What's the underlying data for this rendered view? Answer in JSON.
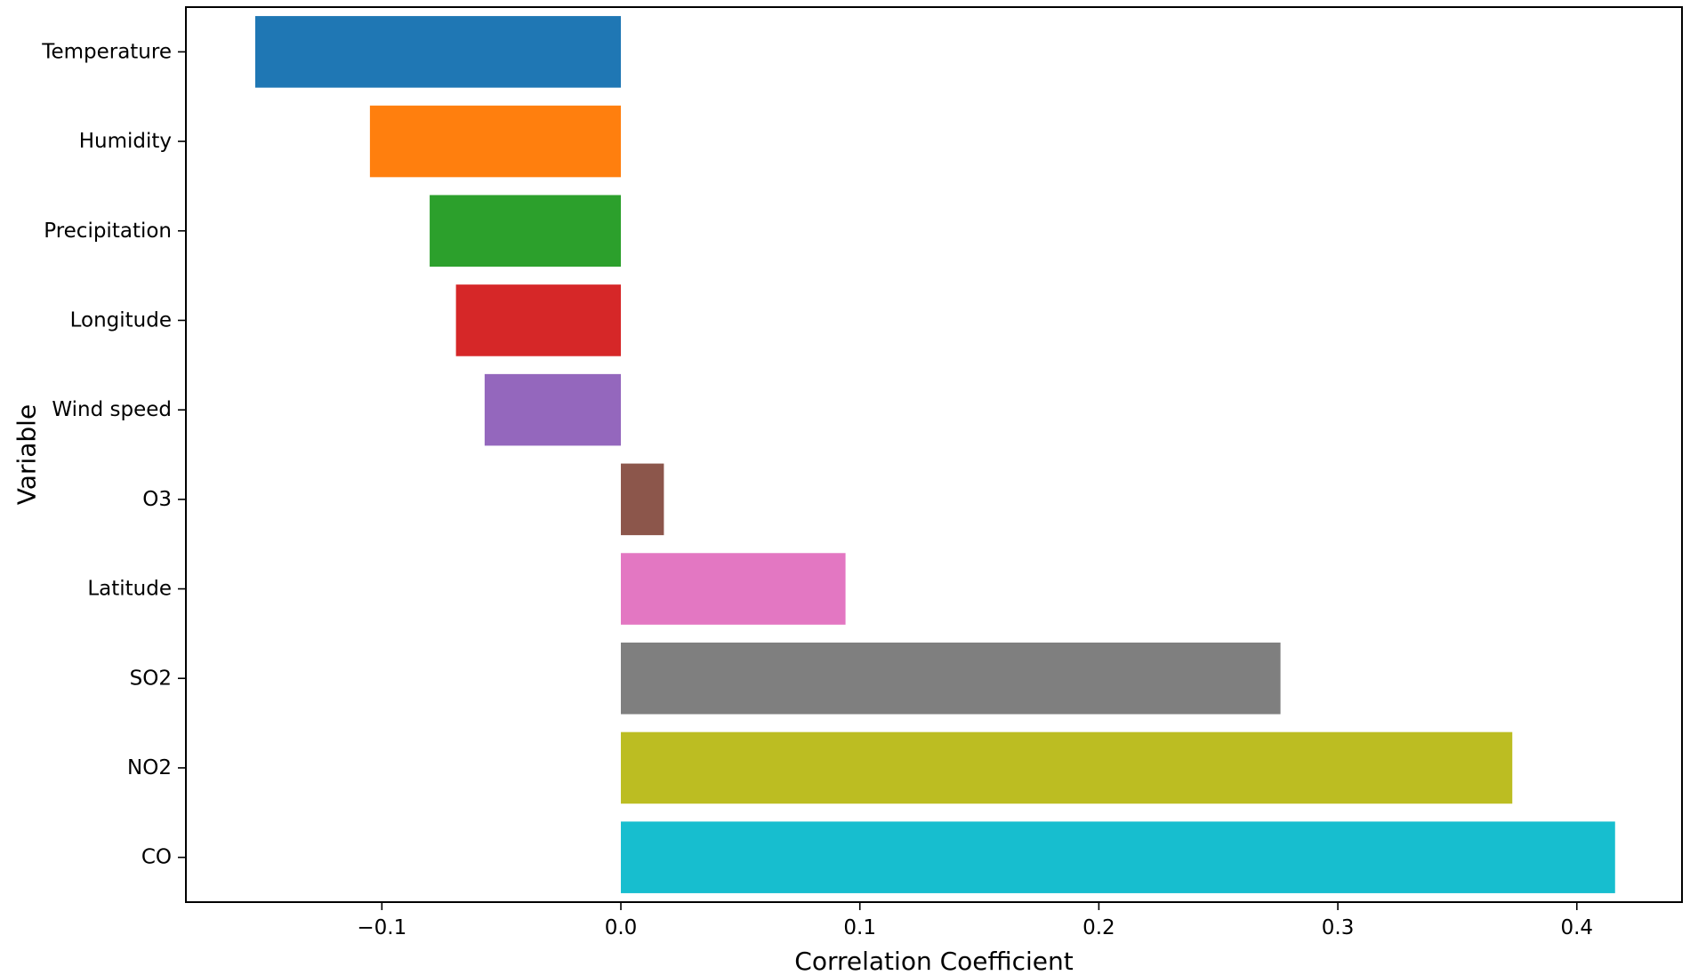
{
  "chart_data": {
    "type": "bar",
    "orientation": "horizontal",
    "title": "",
    "xlabel": "Correlation Coefficient",
    "ylabel": "Variable",
    "categories": [
      "Temperature",
      "Humidity",
      "Precipitation",
      "Longitude",
      "Wind speed",
      "O3",
      "Latitude",
      "SO2",
      "NO2",
      "CO"
    ],
    "values": [
      -0.153,
      -0.105,
      -0.08,
      -0.069,
      -0.057,
      0.018,
      0.094,
      0.276,
      0.373,
      0.416
    ],
    "colors": [
      "#1f77b4",
      "#ff7f0e",
      "#2ca02c",
      "#d62728",
      "#9467bd",
      "#8c564b",
      "#e377c2",
      "#7f7f7f",
      "#bcbd22",
      "#17becf"
    ],
    "xticks": [
      -0.1,
      0.0,
      0.1,
      0.2,
      0.3,
      0.4
    ],
    "xtick_labels": [
      "−0.1",
      "0.0",
      "0.1",
      "0.2",
      "0.3",
      "0.4"
    ],
    "xlim": [
      -0.182,
      0.444
    ],
    "grid": false,
    "legend": "none"
  }
}
